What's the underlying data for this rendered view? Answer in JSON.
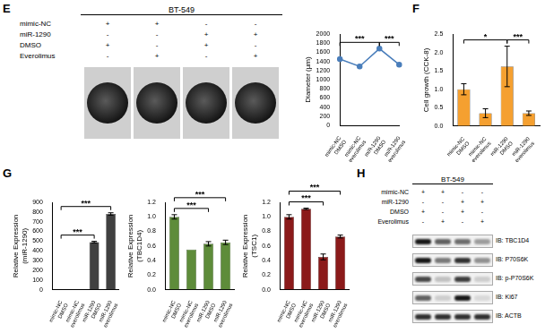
{
  "panel_labels": [
    "E",
    "F",
    "G",
    "H"
  ],
  "spheroids": {
    "header": "BT-549",
    "conditions": [
      {
        "name": "mimic-NC",
        "signs": [
          "+",
          "+",
          "-",
          "-"
        ]
      },
      {
        "name": "miR-1290",
        "signs": [
          "-",
          "-",
          "+",
          "+"
        ]
      },
      {
        "name": "DMSO",
        "signs": [
          "+",
          "-",
          "+",
          "-"
        ]
      },
      {
        "name": "Everolimus",
        "signs": [
          "-",
          "+",
          "-",
          "+"
        ]
      }
    ]
  },
  "blot": {
    "header": "BT-549",
    "conditions": [
      {
        "name": "mimic-NC",
        "signs": [
          "+",
          "+",
          "-",
          "-"
        ]
      },
      {
        "name": "miR-1290",
        "signs": [
          "-",
          "-",
          "+",
          "+"
        ]
      },
      {
        "name": "DMSO",
        "signs": [
          "+",
          "-",
          "+",
          "-"
        ]
      },
      {
        "name": "Everolimus",
        "signs": [
          "-",
          "+",
          "-",
          "+"
        ]
      }
    ],
    "rows": [
      {
        "label": "IB: TBC1D4",
        "intensity": [
          0.9,
          0.6,
          0.55,
          0.35
        ]
      },
      {
        "label": "IB: P70S6K",
        "intensity": [
          0.9,
          0.5,
          0.8,
          0.4
        ]
      },
      {
        "label": "IB: p-P70S6K",
        "intensity": [
          0.7,
          0.2,
          0.75,
          0.15
        ]
      },
      {
        "label": "IB: Ki67",
        "intensity": [
          0.6,
          0.15,
          0.9,
          0.1
        ]
      },
      {
        "label": "IB: ACTB",
        "intensity": [
          0.8,
          0.8,
          0.8,
          0.8
        ]
      }
    ]
  },
  "chart_data": [
    {
      "type": "line",
      "y_label": "Diameter (µm)",
      "categories": [
        "mimic-NC DMSO",
        "mimic-NC everolimus",
        "miR-1290 DMSO",
        "miR-1290 everolimus"
      ],
      "values": [
        1450,
        1290,
        1680,
        1330
      ],
      "color": "#4a7ebb",
      "marker": "circle",
      "ylim": [
        0,
        2000
      ],
      "yticks": [
        0,
        200,
        400,
        600,
        800,
        1000,
        1200,
        1400,
        1600,
        1800,
        2000
      ],
      "grid": false,
      "annotations": [
        {
          "from": 0,
          "to": 2,
          "text": "***"
        },
        {
          "from": 2,
          "to": 3,
          "text": "***"
        }
      ]
    },
    {
      "type": "bar",
      "y_label": "Cell growth (CCK-8)",
      "categories": [
        "mimic-NC DMSO",
        "mimic-NC everolimus",
        "miR-1290 DMSO",
        "miR-1290 everolimus"
      ],
      "values": [
        1.0,
        0.35,
        1.62,
        0.35
      ],
      "errors": [
        0.15,
        0.12,
        0.55,
        0.06
      ],
      "color": "#f5a030",
      "ylim": [
        0,
        2.5
      ],
      "yticks": [
        {
          "value": 0,
          "label": "0.0"
        },
        {
          "value": 0.5,
          "label": "0.5"
        },
        {
          "value": 1,
          "label": "1.0"
        },
        {
          "value": 1.5,
          "label": "1.5"
        },
        {
          "value": 2,
          "label": "2.0"
        },
        {
          "value": 2.5,
          "label": "2.5"
        }
      ],
      "grid": false,
      "annotations": [
        {
          "from": 0,
          "to": 2,
          "text": "*"
        },
        {
          "from": 2,
          "to": 3,
          "text": "***"
        }
      ]
    },
    {
      "type": "bar",
      "y_label": [
        "Relative Expression",
        "(miR-1290)"
      ],
      "categories": [
        "mimic-NC DMSO",
        "mimic-NC everolimus",
        "miR-1290 DMSO",
        "miR-1290 everolimus"
      ],
      "values": [
        1,
        1,
        490,
        780
      ],
      "errors": [
        0,
        0,
        8,
        12
      ],
      "color": "#404040",
      "ylim": [
        0,
        900
      ],
      "yticks": [
        0,
        100,
        200,
        300,
        400,
        500,
        600,
        700,
        800,
        900
      ],
      "grid": false,
      "annotations": [
        {
          "from": 0,
          "to": 2,
          "text": "***"
        },
        {
          "from": 0,
          "to": 3,
          "text": "***"
        }
      ]
    },
    {
      "type": "bar",
      "y_label": [
        "Relative Expression",
        "(TBC1D4)"
      ],
      "categories": [
        "mimic-NC DMSO",
        "mimic-NC everolimus",
        "miR-1290 DMSO",
        "miR-1290 everolimus"
      ],
      "values": [
        1.0,
        0.55,
        0.63,
        0.65
      ],
      "errors": [
        0.03,
        0.0,
        0.03,
        0.03
      ],
      "color": "#5e8c3a",
      "ylim": [
        0,
        1.2
      ],
      "yticks": [
        {
          "value": 0,
          "label": "0.0"
        },
        {
          "value": 0.2,
          "label": "0.2"
        },
        {
          "value": 0.4,
          "label": "0.4"
        },
        {
          "value": 0.6,
          "label": "0.6"
        },
        {
          "value": 0.8,
          "label": "0.8"
        },
        {
          "value": 1,
          "label": "1.0"
        },
        {
          "value": 1.2,
          "label": "1.2"
        }
      ],
      "grid": false,
      "annotations": [
        {
          "from": 0,
          "to": 2,
          "text": "***"
        },
        {
          "from": 0,
          "to": 3,
          "text": "***"
        }
      ]
    },
    {
      "type": "bar",
      "y_label": [
        "Relative Expression",
        "(TSC1)"
      ],
      "categories": [
        "mimic-NC DMSO",
        "mimic-NC everolimus",
        "miR-1290 DMSO",
        "miR-1290 everolimus"
      ],
      "values": [
        1.0,
        1.11,
        0.45,
        0.73
      ],
      "errors": [
        0.03,
        0.01,
        0.04,
        0.02
      ],
      "color": "#8b1a1a",
      "ylim": [
        0,
        1.2
      ],
      "yticks": [
        {
          "value": 0,
          "label": "0.0"
        },
        {
          "value": 0.2,
          "label": "0.2"
        },
        {
          "value": 0.4,
          "label": "0.4"
        },
        {
          "value": 0.6,
          "label": "0.6"
        },
        {
          "value": 0.8,
          "label": "0.8"
        },
        {
          "value": 1,
          "label": "1.0"
        },
        {
          "value": 1.2,
          "label": "1.2"
        }
      ],
      "grid": false,
      "annotations": [
        {
          "from": 0,
          "to": 2,
          "text": "***"
        },
        {
          "from": 0,
          "to": 3,
          "text": "***"
        }
      ]
    }
  ]
}
